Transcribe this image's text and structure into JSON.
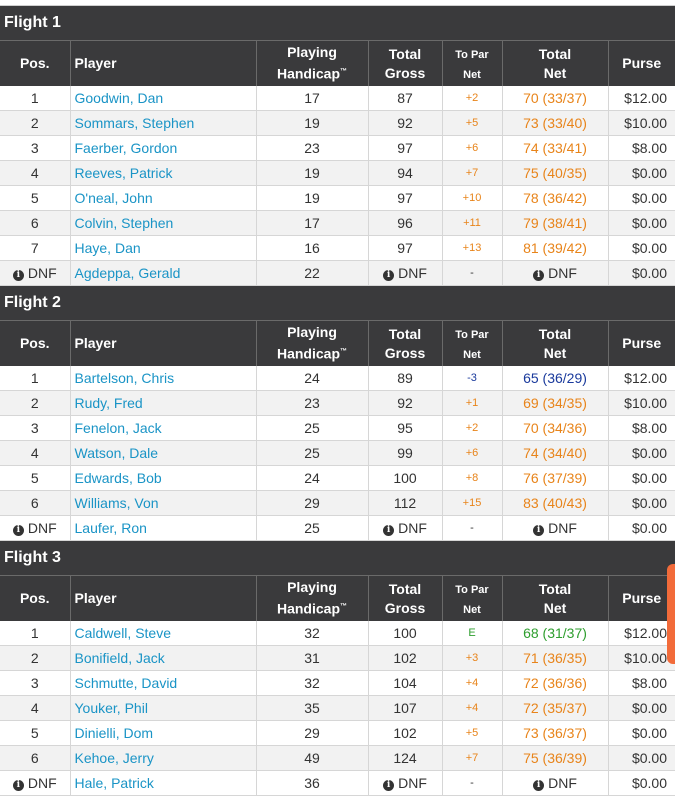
{
  "headers": {
    "pos": "Pos.",
    "player": "Player",
    "handicap_1": "Playing",
    "handicap_2": "Handicap",
    "handicap_tm": "™",
    "gross_1": "Total",
    "gross_2": "Gross",
    "topar_1": "To Par",
    "topar_2": "Net",
    "net_1": "Total",
    "net_2": "Net",
    "purse": "Purse"
  },
  "flights": [
    {
      "title": "Flight 1",
      "rows": [
        {
          "pos": "1",
          "player": "Goodwin, Dan",
          "handicap": "17",
          "gross": "87",
          "topar": "+2",
          "net": "70 (33/37)",
          "purse": "$12.00"
        },
        {
          "pos": "2",
          "player": "Sommars, Stephen",
          "handicap": "19",
          "gross": "92",
          "topar": "+5",
          "net": "73 (33/40)",
          "purse": "$10.00"
        },
        {
          "pos": "3",
          "player": "Faerber, Gordon",
          "handicap": "23",
          "gross": "97",
          "topar": "+6",
          "net": "74 (33/41)",
          "purse": "$8.00"
        },
        {
          "pos": "4",
          "player": "Reeves, Patrick",
          "handicap": "19",
          "gross": "94",
          "topar": "+7",
          "net": "75 (40/35)",
          "purse": "$0.00"
        },
        {
          "pos": "5",
          "player": "O'neal, John",
          "handicap": "19",
          "gross": "97",
          "topar": "+10",
          "net": "78 (36/42)",
          "purse": "$0.00"
        },
        {
          "pos": "6",
          "player": "Colvin, Stephen",
          "handicap": "17",
          "gross": "96",
          "topar": "+11",
          "net": "79 (38/41)",
          "purse": "$0.00"
        },
        {
          "pos": "7",
          "player": "Haye, Dan",
          "handicap": "16",
          "gross": "97",
          "topar": "+13",
          "net": "81 (39/42)",
          "purse": "$0.00"
        },
        {
          "pos": "DNF",
          "player": "Agdeppa, Gerald",
          "handicap": "22",
          "gross": "DNF",
          "topar": "-",
          "net": "DNF",
          "purse": "$0.00"
        }
      ]
    },
    {
      "title": "Flight 2",
      "rows": [
        {
          "pos": "1",
          "player": "Bartelson, Chris",
          "handicap": "24",
          "gross": "89",
          "topar": "-3",
          "net": "65 (36/29)",
          "purse": "$12.00"
        },
        {
          "pos": "2",
          "player": "Rudy, Fred",
          "handicap": "23",
          "gross": "92",
          "topar": "+1",
          "net": "69 (34/35)",
          "purse": "$10.00"
        },
        {
          "pos": "3",
          "player": "Fenelon, Jack",
          "handicap": "25",
          "gross": "95",
          "topar": "+2",
          "net": "70 (34/36)",
          "purse": "$8.00"
        },
        {
          "pos": "4",
          "player": "Watson, Dale",
          "handicap": "25",
          "gross": "99",
          "topar": "+6",
          "net": "74 (34/40)",
          "purse": "$0.00"
        },
        {
          "pos": "5",
          "player": "Edwards, Bob",
          "handicap": "24",
          "gross": "100",
          "topar": "+8",
          "net": "76 (37/39)",
          "purse": "$0.00"
        },
        {
          "pos": "6",
          "player": "Williams, Von",
          "handicap": "29",
          "gross": "112",
          "topar": "+15",
          "net": "83 (40/43)",
          "purse": "$0.00"
        },
        {
          "pos": "DNF",
          "player": "Laufer, Ron",
          "handicap": "25",
          "gross": "DNF",
          "topar": "-",
          "net": "DNF",
          "purse": "$0.00"
        }
      ]
    },
    {
      "title": "Flight 3",
      "rows": [
        {
          "pos": "1",
          "player": "Caldwell, Steve",
          "handicap": "32",
          "gross": "100",
          "topar": "E",
          "net": "68 (31/37)",
          "purse": "$12.00"
        },
        {
          "pos": "2",
          "player": "Bonifield, Jack",
          "handicap": "31",
          "gross": "102",
          "topar": "+3",
          "net": "71 (36/35)",
          "purse": "$10.00"
        },
        {
          "pos": "3",
          "player": "Schmutte, David",
          "handicap": "32",
          "gross": "104",
          "topar": "+4",
          "net": "72 (36/36)",
          "purse": "$8.00"
        },
        {
          "pos": "4",
          "player": "Youker, Phil",
          "handicap": "35",
          "gross": "107",
          "topar": "+4",
          "net": "72 (35/37)",
          "purse": "$0.00"
        },
        {
          "pos": "5",
          "player": "Dinielli, Dom",
          "handicap": "29",
          "gross": "102",
          "topar": "+5",
          "net": "73 (36/37)",
          "purse": "$0.00"
        },
        {
          "pos": "6",
          "player": "Kehoe, Jerry",
          "handicap": "49",
          "gross": "124",
          "topar": "+7",
          "net": "75 (36/39)",
          "purse": "$0.00"
        },
        {
          "pos": "DNF",
          "player": "Hale, Patrick",
          "handicap": "36",
          "gross": "DNF",
          "topar": "-",
          "net": "DNF",
          "purse": "$0.00"
        }
      ]
    }
  ],
  "icons": {
    "dnf_info": "info-circle-icon",
    "info_glyph": "i"
  },
  "colors": {
    "header_bg": "#3a3a3c",
    "player_link": "#1a94c6",
    "over_par": "#e8841a",
    "under_par": "#1a3a9c",
    "even_par": "#2e9e2e",
    "side_tab": "#f26b3a"
  }
}
